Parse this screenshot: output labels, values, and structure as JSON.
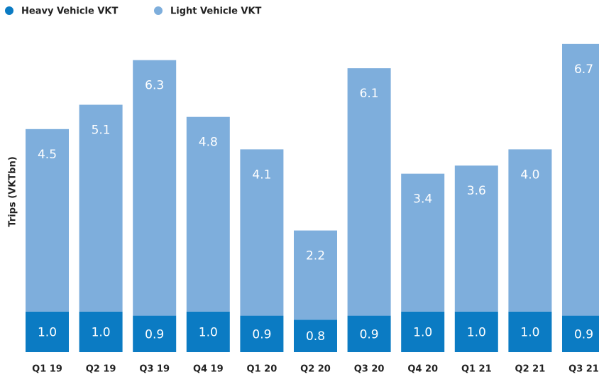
{
  "chart_data": {
    "type": "stacked_bar",
    "categories": [
      "Q1 19",
      "Q2 19",
      "Q3 19",
      "Q4 19",
      "Q1 20",
      "Q2 20",
      "Q3 20",
      "Q4 20",
      "Q1 21",
      "Q2 21",
      "Q3 21"
    ],
    "y_label": "Trips (VKTbn)",
    "ylim": [
      0,
      8
    ],
    "legend": "top-left",
    "series": [
      {
        "name": "Heavy Vehicle VKT",
        "color": "#0b7bc3",
        "values": [
          1.0,
          1.0,
          0.9,
          1.0,
          0.9,
          0.8,
          0.9,
          1.0,
          1.0,
          1.0,
          0.9
        ],
        "value_labels": [
          "1.0",
          "1.0",
          "0.9",
          "1.0",
          "0.9",
          "0.8",
          "0.9",
          "1.0",
          "1.0",
          "1.0",
          "0.9"
        ]
      },
      {
        "name": "Light Vehicle VKT",
        "color": "#7eaedc",
        "values": [
          4.5,
          5.1,
          6.3,
          4.8,
          4.1,
          2.2,
          6.1,
          3.4,
          3.6,
          4.0,
          6.7
        ],
        "value_labels": [
          "4.5",
          "5.1",
          "6.3",
          "4.8",
          "4.1",
          "2.2",
          "6.1",
          "3.4",
          "3.6",
          "4.0",
          "6.7"
        ]
      }
    ]
  }
}
